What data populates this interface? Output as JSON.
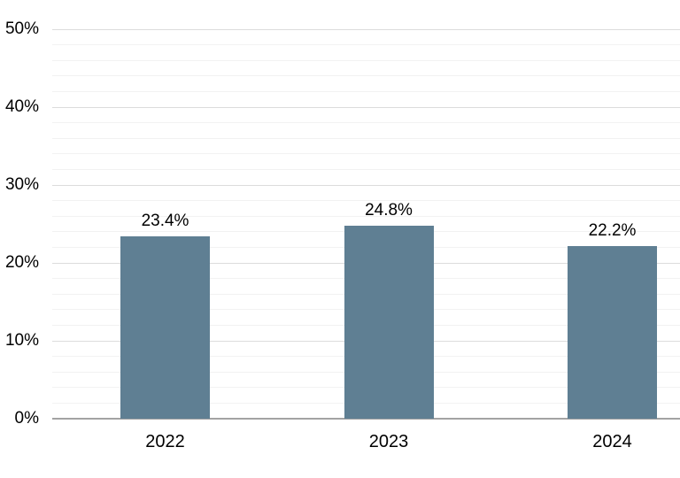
{
  "chart_data": {
    "type": "bar",
    "categories": [
      "2022",
      "2023",
      "2024"
    ],
    "values": [
      23.4,
      24.8,
      22.2
    ],
    "data_labels": [
      "23.4%",
      "24.8%",
      "22.2%"
    ],
    "title": "",
    "xlabel": "",
    "ylabel": "",
    "ylim": [
      0,
      50
    ],
    "y_major_step": 10,
    "y_minor_step": 2,
    "y_tick_labels": [
      "0%",
      "10%",
      "20%",
      "30%",
      "40%",
      "50%"
    ],
    "grid": "on",
    "legend_position": "none",
    "colors": {
      "bar_fill": "#5f7f93",
      "major_gridline": "#dcdcdc",
      "minor_gridline": "#f2f2f2",
      "axis_line": "#a3a3a3",
      "label_text": "#000000"
    }
  }
}
